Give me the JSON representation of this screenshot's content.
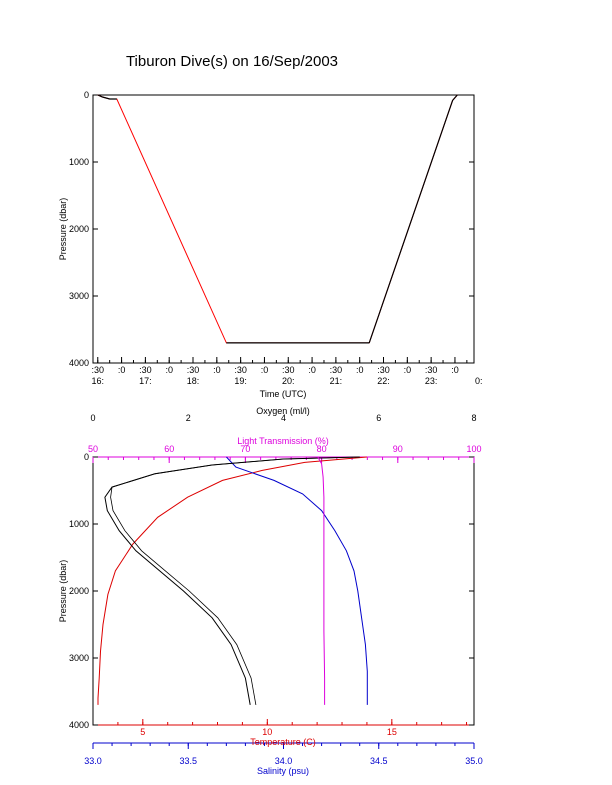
{
  "title": "Tiburon Dive(s) on 16/Sep/2003",
  "colors": {
    "frame": "#000000",
    "depth_trace": "#000000",
    "depth_interp": "#ff0000",
    "temperature": "#dd0000",
    "salinity": "#0000cc",
    "oxygen": "#000000",
    "transmission": "#dd00dd"
  },
  "chart_data": [
    {
      "type": "line",
      "title": "Tiburon Dive(s) on 16/Sep/2003",
      "xlabel": "Time (UTC)",
      "ylabel": "Pressure (dbar)",
      "y_reversed": true,
      "ylim": [
        0,
        4000
      ],
      "yticks": [
        "0",
        "1000",
        "2000",
        "3000",
        "4000"
      ],
      "xlim_hours": [
        16.4,
        24.4
      ],
      "time_tick_top": [
        ":30",
        ":0",
        ":30",
        ":0",
        ":30",
        ":0",
        ":30",
        ":0",
        ":30",
        ":0",
        ":30",
        ":0",
        ":30",
        ":0",
        ":30",
        ":0"
      ],
      "time_tick_bottom": [
        "16:",
        "17:",
        "18:",
        "19:",
        "20:",
        "21:",
        "22:",
        "23:",
        "0:"
      ],
      "series": [
        {
          "x": [
            16.5,
            16.6,
            16.75,
            16.9,
            19.2,
            22.2,
            23.95,
            24.05
          ],
          "y": [
            0,
            30,
            60,
            60,
            3700,
            3700,
            80,
            0
          ]
        }
      ]
    },
    {
      "type": "line",
      "ylabel": "Pressure (dbar)",
      "y_reversed": true,
      "ylim": [
        0,
        4000
      ],
      "yticks": [
        "0",
        "1000",
        "2000",
        "3000",
        "4000"
      ],
      "axes": {
        "oxygen": {
          "label": "Oxygen (ml/l)",
          "range": [
            0,
            8
          ],
          "ticks": [
            "0",
            "2",
            "4",
            "6",
            "8"
          ]
        },
        "transmission": {
          "label": "Light Transmission (%)",
          "range": [
            50,
            100
          ],
          "ticks": [
            "50",
            "60",
            "70",
            "80",
            "90",
            "100"
          ]
        },
        "temperature": {
          "label": "Temperature (C)",
          "range": [
            3,
            18.3
          ],
          "ticks": [
            "5",
            "10",
            "15"
          ]
        },
        "salinity": {
          "label": "Salinity (psu)",
          "range": [
            33.0,
            35.0
          ],
          "ticks": [
            "33.0",
            "33.5",
            "34.0",
            "34.5",
            "35.0"
          ]
        }
      },
      "series": [
        {
          "axis": "temperature",
          "x": [
            14.0,
            11.5,
            9.8,
            8.2,
            6.8,
            5.6,
            4.6,
            3.9,
            3.6,
            3.4,
            3.3,
            3.25,
            3.2,
            3.2
          ],
          "y": [
            0,
            80,
            200,
            350,
            600,
            900,
            1300,
            1700,
            2050,
            2500,
            2900,
            3300,
            3600,
            3700
          ]
        },
        {
          "axis": "salinity",
          "x": [
            33.7,
            33.75,
            33.95,
            34.1,
            34.2,
            34.27,
            34.33,
            34.37,
            34.39,
            34.41,
            34.43,
            34.44,
            34.44,
            34.44
          ],
          "y": [
            0,
            150,
            350,
            550,
            800,
            1100,
            1400,
            1700,
            2000,
            2400,
            2800,
            3200,
            3500,
            3700
          ]
        },
        {
          "axis": "oxygen",
          "x": [
            5.6,
            4.0,
            2.5,
            1.3,
            0.4,
            0.25,
            0.3,
            0.55,
            0.9,
            1.4,
            1.9,
            2.5,
            2.9,
            3.2,
            3.3
          ],
          "y": [
            0,
            30,
            120,
            250,
            450,
            600,
            800,
            1100,
            1400,
            1700,
            2000,
            2400,
            2800,
            3300,
            3700
          ]
        },
        {
          "axis": "transmission",
          "x": [
            79.5,
            80.0,
            80.2,
            80.3,
            80.3,
            80.3,
            80.3,
            80.4,
            80.4
          ],
          "y": [
            0,
            100,
            300,
            600,
            1000,
            1800,
            2600,
            3300,
            3700
          ]
        }
      ]
    }
  ]
}
